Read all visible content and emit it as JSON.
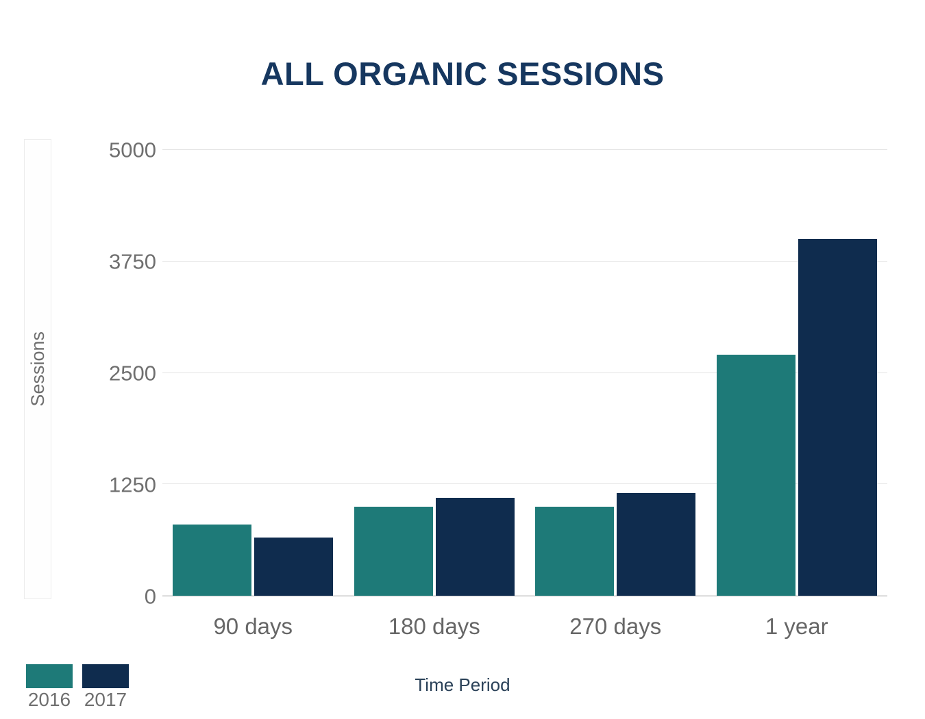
{
  "chart_data": {
    "type": "bar",
    "title": "ALL ORGANIC SESSIONS",
    "xlabel": "Time Period",
    "ylabel": "Sessions",
    "categories": [
      "90 days",
      "180 days",
      "270 days",
      "1 year"
    ],
    "series": [
      {
        "name": "2016",
        "color": "#1e7a78",
        "values": [
          800,
          1000,
          1000,
          2700
        ]
      },
      {
        "name": "2017",
        "color": "#0f2c4e",
        "values": [
          650,
          1100,
          1150,
          4000
        ]
      }
    ],
    "yticks": [
      0,
      1250,
      2500,
      3750,
      5000
    ],
    "ylim": [
      0,
      5000
    ],
    "grid": true,
    "legend_position": "bottom-left"
  },
  "colors": {
    "title_text": "#16375f",
    "axis_text": "#6f6f6f",
    "category_text": "#666666",
    "xlabel_text": "#2a4158",
    "gridline": "#e4e4e4",
    "axis_line": "#c9c9c9"
  }
}
